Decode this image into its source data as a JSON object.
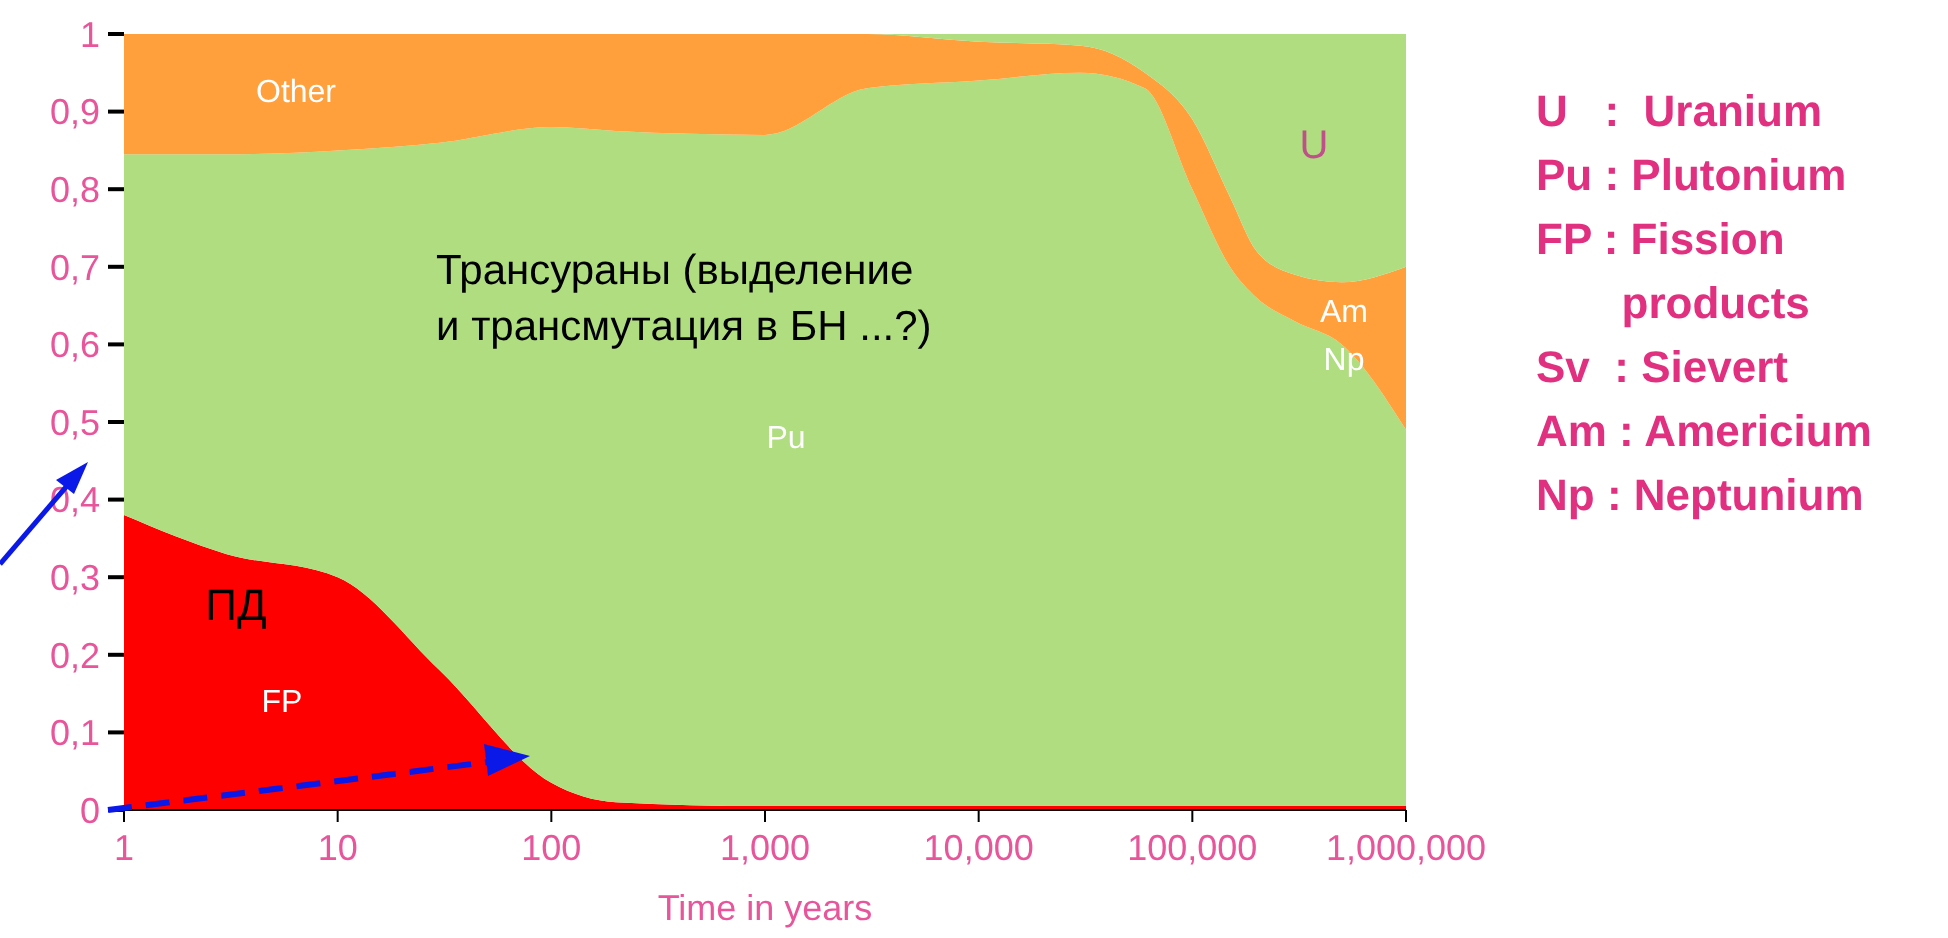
{
  "chart_data": {
    "type": "area",
    "stacked": true,
    "xlabel": "Time in years",
    "log": "x",
    "grid": false,
    "legend": false,
    "x": [
      1,
      3,
      10,
      30,
      100,
      200,
      1000,
      3000,
      10000,
      30000,
      60000,
      100000,
      150000,
      200000,
      300000,
      500000,
      1000000
    ],
    "series": [
      {
        "color": "#ff0000",
        "values": [
          0.38,
          0.33,
          0.3,
          0.18,
          0.035,
          0.01,
          0.005,
          0.005,
          0.005,
          0.005,
          0.005,
          0.005,
          0.005,
          0.005,
          0.005,
          0.005,
          0.005
        ]
      },
      {
        "color": "#b0dd80",
        "values": [
          0.465,
          0.515,
          0.55,
          0.68,
          0.845,
          0.865,
          0.865,
          0.925,
          0.935,
          0.945,
          0.925,
          0.795,
          0.695,
          0.655,
          0.625,
          0.595,
          0.485
        ]
      },
      {
        "color": "#ffa03c",
        "values": [
          0.155,
          0.155,
          0.15,
          0.14,
          0.12,
          0.125,
          0.13,
          0.07,
          0.05,
          0.035,
          0.02,
          0.09,
          0.09,
          0.06,
          0.06,
          0.08,
          0.21
        ]
      },
      {
        "color": "#b0dd80",
        "values": [
          0,
          0,
          0,
          0,
          0,
          0,
          0,
          0,
          0.01,
          0.015,
          0.05,
          0.11,
          0.21,
          0.28,
          0.31,
          0.32,
          0.3
        ]
      }
    ],
    "xlim": [
      1,
      1000000
    ],
    "xticks": [
      1,
      10,
      100,
      {
        "value": 1000,
        "label": "1,000"
      },
      {
        "value": 10000,
        "label": "10,000"
      },
      {
        "value": 100000,
        "label": "100,000"
      },
      {
        "value": 1000000,
        "label": "1,000,000"
      }
    ],
    "ylim": [
      0,
      1
    ],
    "yticks": [
      0,
      {
        "value": 0.1,
        "label": "0,1"
      },
      {
        "value": 0.2,
        "label": "0,2"
      },
      {
        "value": 0.3,
        "label": "0,3"
      },
      {
        "value": 0.4,
        "label": "0,4"
      },
      {
        "value": 0.5,
        "label": "0,5"
      },
      {
        "value": 0.6,
        "label": "0,6"
      },
      {
        "value": 0.7,
        "label": "0,7"
      },
      {
        "value": 0.8,
        "label": "0,8"
      },
      {
        "value": 0.9,
        "label": "0,9"
      },
      1
    ],
    "annotations": [
      "Other",
      "Pu",
      "FP",
      "ПД",
      "U",
      "Am",
      "Np",
      "Трансураны  (выделение\nи трансмутация в БН ...?)",
      "U   :  Uranium",
      "Pu : Plutonium",
      "FP : Fission\n       products",
      "Sv  : Sievert",
      "Am : Americium",
      "Np : Neptunium"
    ]
  }
}
